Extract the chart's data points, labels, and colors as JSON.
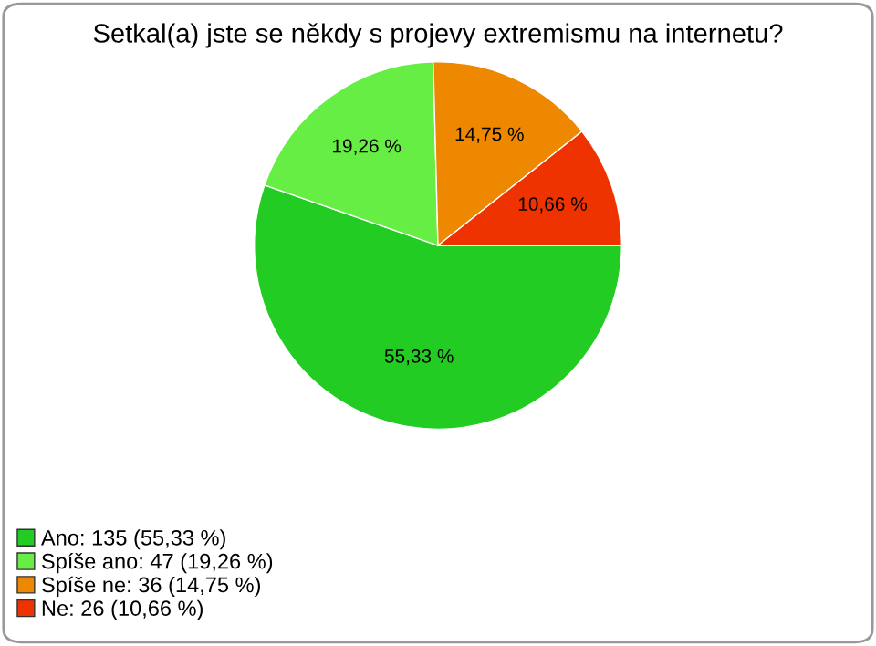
{
  "chart_data": {
    "type": "pie",
    "title": "Setkal(a) jste se někdy s projevy extremismu na internetu?",
    "categories": [
      "Ano: 135 (55,33 %)",
      "Spíše ano: 47 (19,26 %)",
      "Spíše ne: 36 (14,75 %)",
      "Ne: 26 (10,66 %)"
    ],
    "values": [
      55.33,
      19.26,
      14.75,
      10.66
    ],
    "value_labels": [
      "55,33 %",
      "19,26 %",
      "14,75 %",
      "10,66 %"
    ],
    "colors": [
      "#22cc22",
      "#66ee44",
      "#ee8800",
      "#ee3300"
    ],
    "legend": "bottom left"
  }
}
